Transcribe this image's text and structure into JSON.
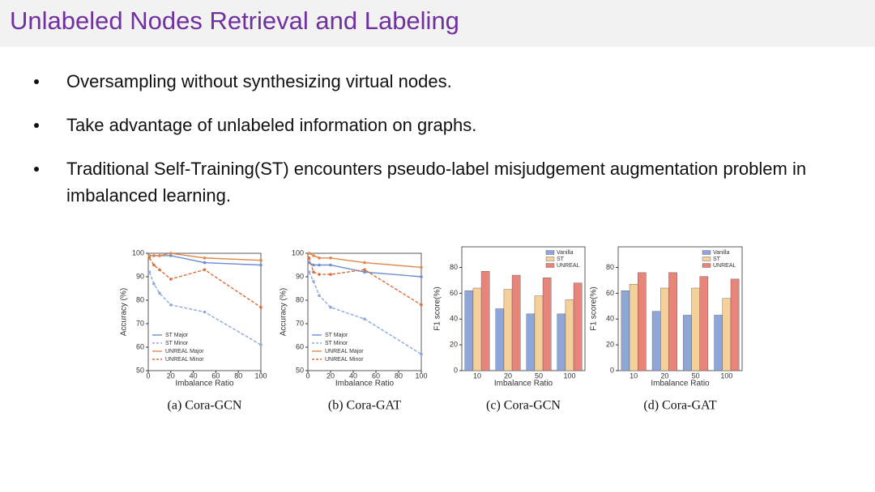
{
  "title": "Unlabeled Nodes Retrieval and Labeling",
  "bullets": [
    "Oversampling without synthesizing virtual nodes.",
    "Take advantage of unlabeled information on graphs.",
    "Traditional Self-Training(ST) encounters pseudo-label misjudgement augmentation problem in imbalanced learning."
  ],
  "chart_data": [
    {
      "type": "line",
      "caption": "(a) Cora-GCN",
      "xlabel": "Imbalance Ratio",
      "ylabel": "Accuracy (%)",
      "x": [
        1,
        5,
        10,
        20,
        50,
        100
      ],
      "xlim": [
        0,
        100
      ],
      "xticks": [
        0,
        20,
        40,
        60,
        80,
        100
      ],
      "ylim": [
        50,
        100
      ],
      "yticks": [
        50,
        60,
        70,
        80,
        90,
        100
      ],
      "series": [
        {
          "name": "ST Major",
          "color": "#6b8ed6",
          "dash": false,
          "values": [
            99,
            99,
            99,
            99,
            96,
            95
          ]
        },
        {
          "name": "ST Minor",
          "color": "#8fa8e0",
          "dash": true,
          "values": [
            92,
            87,
            83,
            78,
            75,
            61
          ]
        },
        {
          "name": "UNREAL Major",
          "color": "#e0894a",
          "dash": false,
          "values": [
            99,
            99,
            99,
            100,
            98,
            97
          ]
        },
        {
          "name": "UNREAL Minor",
          "color": "#d9703c",
          "dash": true,
          "values": [
            98,
            95,
            93,
            89,
            93,
            77
          ]
        }
      ]
    },
    {
      "type": "line",
      "caption": "(b) Cora-GAT",
      "xlabel": "Imbalance Ratio",
      "ylabel": "Accuracy (%)",
      "x": [
        1,
        5,
        10,
        20,
        50,
        100
      ],
      "xlim": [
        0,
        100
      ],
      "xticks": [
        0,
        20,
        40,
        60,
        80,
        100
      ],
      "ylim": [
        50,
        100
      ],
      "yticks": [
        50,
        60,
        70,
        80,
        90,
        100
      ],
      "series": [
        {
          "name": "ST Major",
          "color": "#6b8ed6",
          "dash": false,
          "values": [
            96,
            95,
            95,
            95,
            92,
            90
          ]
        },
        {
          "name": "ST Minor",
          "color": "#8fa8e0",
          "dash": true,
          "values": [
            92,
            88,
            82,
            77,
            72,
            57
          ]
        },
        {
          "name": "UNREAL Major",
          "color": "#e0894a",
          "dash": false,
          "values": [
            100,
            99,
            98,
            98,
            96,
            94
          ]
        },
        {
          "name": "UNREAL Minor",
          "color": "#d9703c",
          "dash": true,
          "values": [
            98,
            92,
            91,
            91,
            93,
            78
          ]
        }
      ]
    },
    {
      "type": "bar",
      "caption": "(c) Cora-GCN",
      "xlabel": "Imbalance Ratio",
      "ylabel": "F1 score(%)",
      "categories": [
        "10",
        "20",
        "50",
        "100"
      ],
      "ylim": [
        0,
        96
      ],
      "yticks": [
        0,
        20,
        40,
        60,
        80
      ],
      "series": [
        {
          "name": "Vanilla",
          "color": "#8fa6d8",
          "values": [
            62,
            48,
            44,
            44
          ]
        },
        {
          "name": "ST",
          "color": "#f4d19a",
          "values": [
            64,
            63,
            58,
            55
          ]
        },
        {
          "name": "UNREAL",
          "color": "#e8847a",
          "values": [
            77,
            74,
            72,
            68
          ]
        }
      ]
    },
    {
      "type": "bar",
      "caption": "(d) Cora-GAT",
      "xlabel": "Imbalance Ratio",
      "ylabel": "F1 score(%)",
      "categories": [
        "10",
        "20",
        "50",
        "100"
      ],
      "ylim": [
        0,
        96
      ],
      "yticks": [
        0,
        20,
        40,
        60,
        80
      ],
      "series": [
        {
          "name": "Vanilla",
          "color": "#8fa6d8",
          "values": [
            62,
            46,
            43,
            43
          ]
        },
        {
          "name": "ST",
          "color": "#f4d19a",
          "values": [
            67,
            64,
            64,
            56
          ]
        },
        {
          "name": "UNREAL",
          "color": "#e8847a",
          "values": [
            76,
            76,
            73,
            71
          ]
        }
      ]
    }
  ]
}
